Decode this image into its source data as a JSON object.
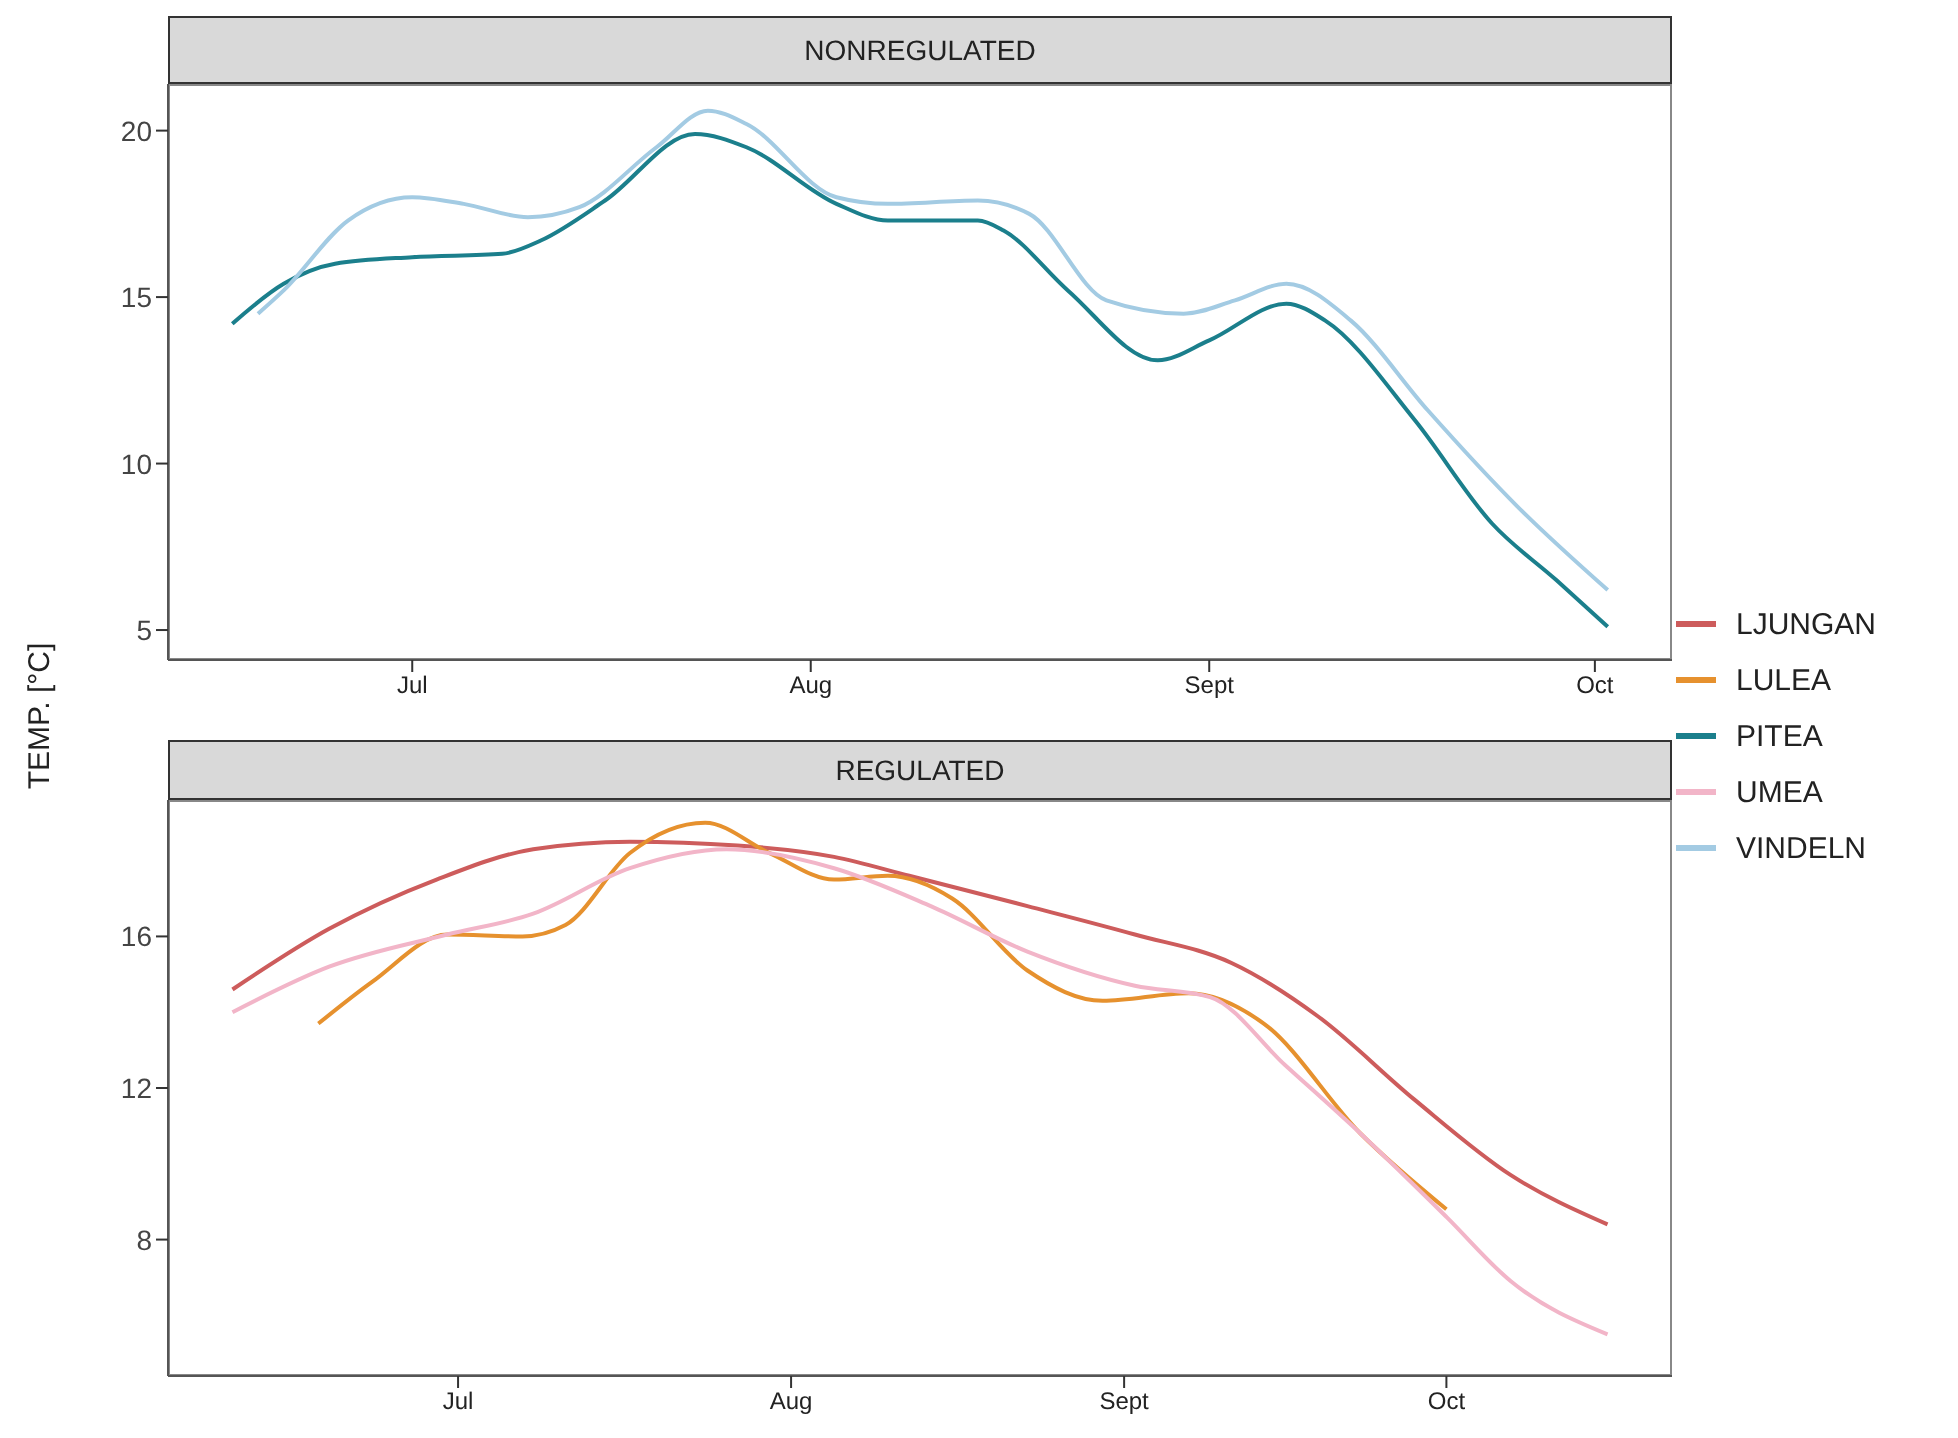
{
  "chart_data": [
    {
      "type": "line",
      "title": "NONREGULATED",
      "ylabel": "TEMP. [°C]",
      "legend": "right",
      "marker": "none",
      "line_style": "solid",
      "xlim": [
        "--06-12",
        "--10-07"
      ],
      "xticks": [
        {
          "value": "--07-01",
          "label": "Jul"
        },
        {
          "value": "--08-01",
          "label": "Aug"
        },
        {
          "value": "--09-01",
          "label": "Sept"
        },
        {
          "value": "--10-01",
          "label": "Oct"
        }
      ],
      "ylim": [
        4.1,
        21.4
      ],
      "yticks": [
        5,
        10,
        15,
        20
      ],
      "series": [
        {
          "name": "PITEA",
          "color": "#1b7f8c",
          "x": [
            "--06-17",
            "--06-21",
            "--06-25",
            "--07-01",
            "--07-08",
            "--07-11",
            "--07-16",
            "--07-23",
            "--07-27",
            "--08-03",
            "--08-07",
            "--08-14",
            "--08-16",
            "--08-21",
            "--08-28",
            "--09-01",
            "--09-07",
            "--09-10",
            "--09-17",
            "--09-23",
            "--09-28",
            "--10-02"
          ],
          "values": [
            14.2,
            15.4,
            16.0,
            16.2,
            16.3,
            16.7,
            17.9,
            19.9,
            19.5,
            17.8,
            17.3,
            17.3,
            17.0,
            15.2,
            13.1,
            13.7,
            14.8,
            14.3,
            11.3,
            8.2,
            6.5,
            5.1
          ]
        },
        {
          "name": "VINDELN",
          "color": "#a3cbe3",
          "x": [
            "--06-19",
            "--06-21",
            "--06-26",
            "--07-01",
            "--07-05",
            "--07-10",
            "--07-14",
            "--07-20",
            "--07-24",
            "--07-27",
            "--08-03",
            "--08-07",
            "--08-14",
            "--08-18",
            "--08-24",
            "--08-30",
            "--09-03",
            "--09-07",
            "--09-12",
            "--09-18",
            "--09-25",
            "--10-02"
          ],
          "values": [
            14.5,
            15.2,
            17.3,
            18.0,
            17.8,
            17.4,
            17.7,
            19.5,
            20.6,
            20.2,
            18.0,
            17.8,
            17.9,
            17.5,
            14.9,
            14.5,
            14.9,
            15.4,
            14.3,
            11.6,
            8.7,
            6.2
          ]
        }
      ]
    },
    {
      "type": "line",
      "title": "REGULATED",
      "legend": "right",
      "marker": "none",
      "line_style": "solid",
      "xlim": [
        "--06-04",
        "--10-22"
      ],
      "xticks": [
        {
          "value": "--07-01",
          "label": "Jul"
        },
        {
          "value": "--08-01",
          "label": "Aug"
        },
        {
          "value": "--09-01",
          "label": "Sept"
        },
        {
          "value": "--10-01",
          "label": "Oct"
        }
      ],
      "ylim": [
        4.4,
        19.6
      ],
      "yticks": [
        8,
        12,
        16
      ],
      "series": [
        {
          "name": "LJUNGAN",
          "color": "#cd5c5c",
          "x": [
            "--06-10",
            "--06-19",
            "--06-29",
            "--07-08",
            "--07-17",
            "--07-27",
            "--08-05",
            "--08-12",
            "--08-23",
            "--09-02",
            "--09-11",
            "--09-19",
            "--09-28",
            "--10-07",
            "--10-16"
          ],
          "values": [
            14.6,
            16.2,
            17.5,
            18.3,
            18.5,
            18.4,
            18.1,
            17.6,
            16.8,
            16.05,
            15.3,
            13.9,
            11.7,
            9.7,
            8.4
          ]
        },
        {
          "name": "LULEA",
          "color": "#e6912e",
          "x": [
            "--06-18",
            "--06-23",
            "--06-30",
            "--07-07",
            "--07-11",
            "--07-17",
            "--07-24",
            "--07-30",
            "--08-05",
            "--08-10",
            "--08-16",
            "--08-23",
            "--08-30",
            "--09-07",
            "--09-14",
            "--09-23",
            "--10-01"
          ],
          "values": [
            13.7,
            14.8,
            16.05,
            16.0,
            16.3,
            18.2,
            19.0,
            18.2,
            17.5,
            17.6,
            17.0,
            15.1,
            14.3,
            14.5,
            13.7,
            10.8,
            8.8
          ]
        },
        {
          "name": "UMEA",
          "color": "#f2b5c8",
          "x": [
            "--06-10",
            "--06-19",
            "--06-30",
            "--07-08",
            "--07-17",
            "--07-26",
            "--08-05",
            "--08-14",
            "--08-23",
            "--09-02",
            "--09-09",
            "--09-16",
            "--09-23",
            "--10-01",
            "--10-07",
            "--10-16"
          ],
          "values": [
            14.0,
            15.2,
            16.05,
            16.6,
            17.8,
            18.3,
            17.8,
            16.8,
            15.6,
            14.7,
            14.4,
            12.6,
            10.8,
            8.6,
            6.9,
            5.5
          ]
        }
      ]
    }
  ]
}
